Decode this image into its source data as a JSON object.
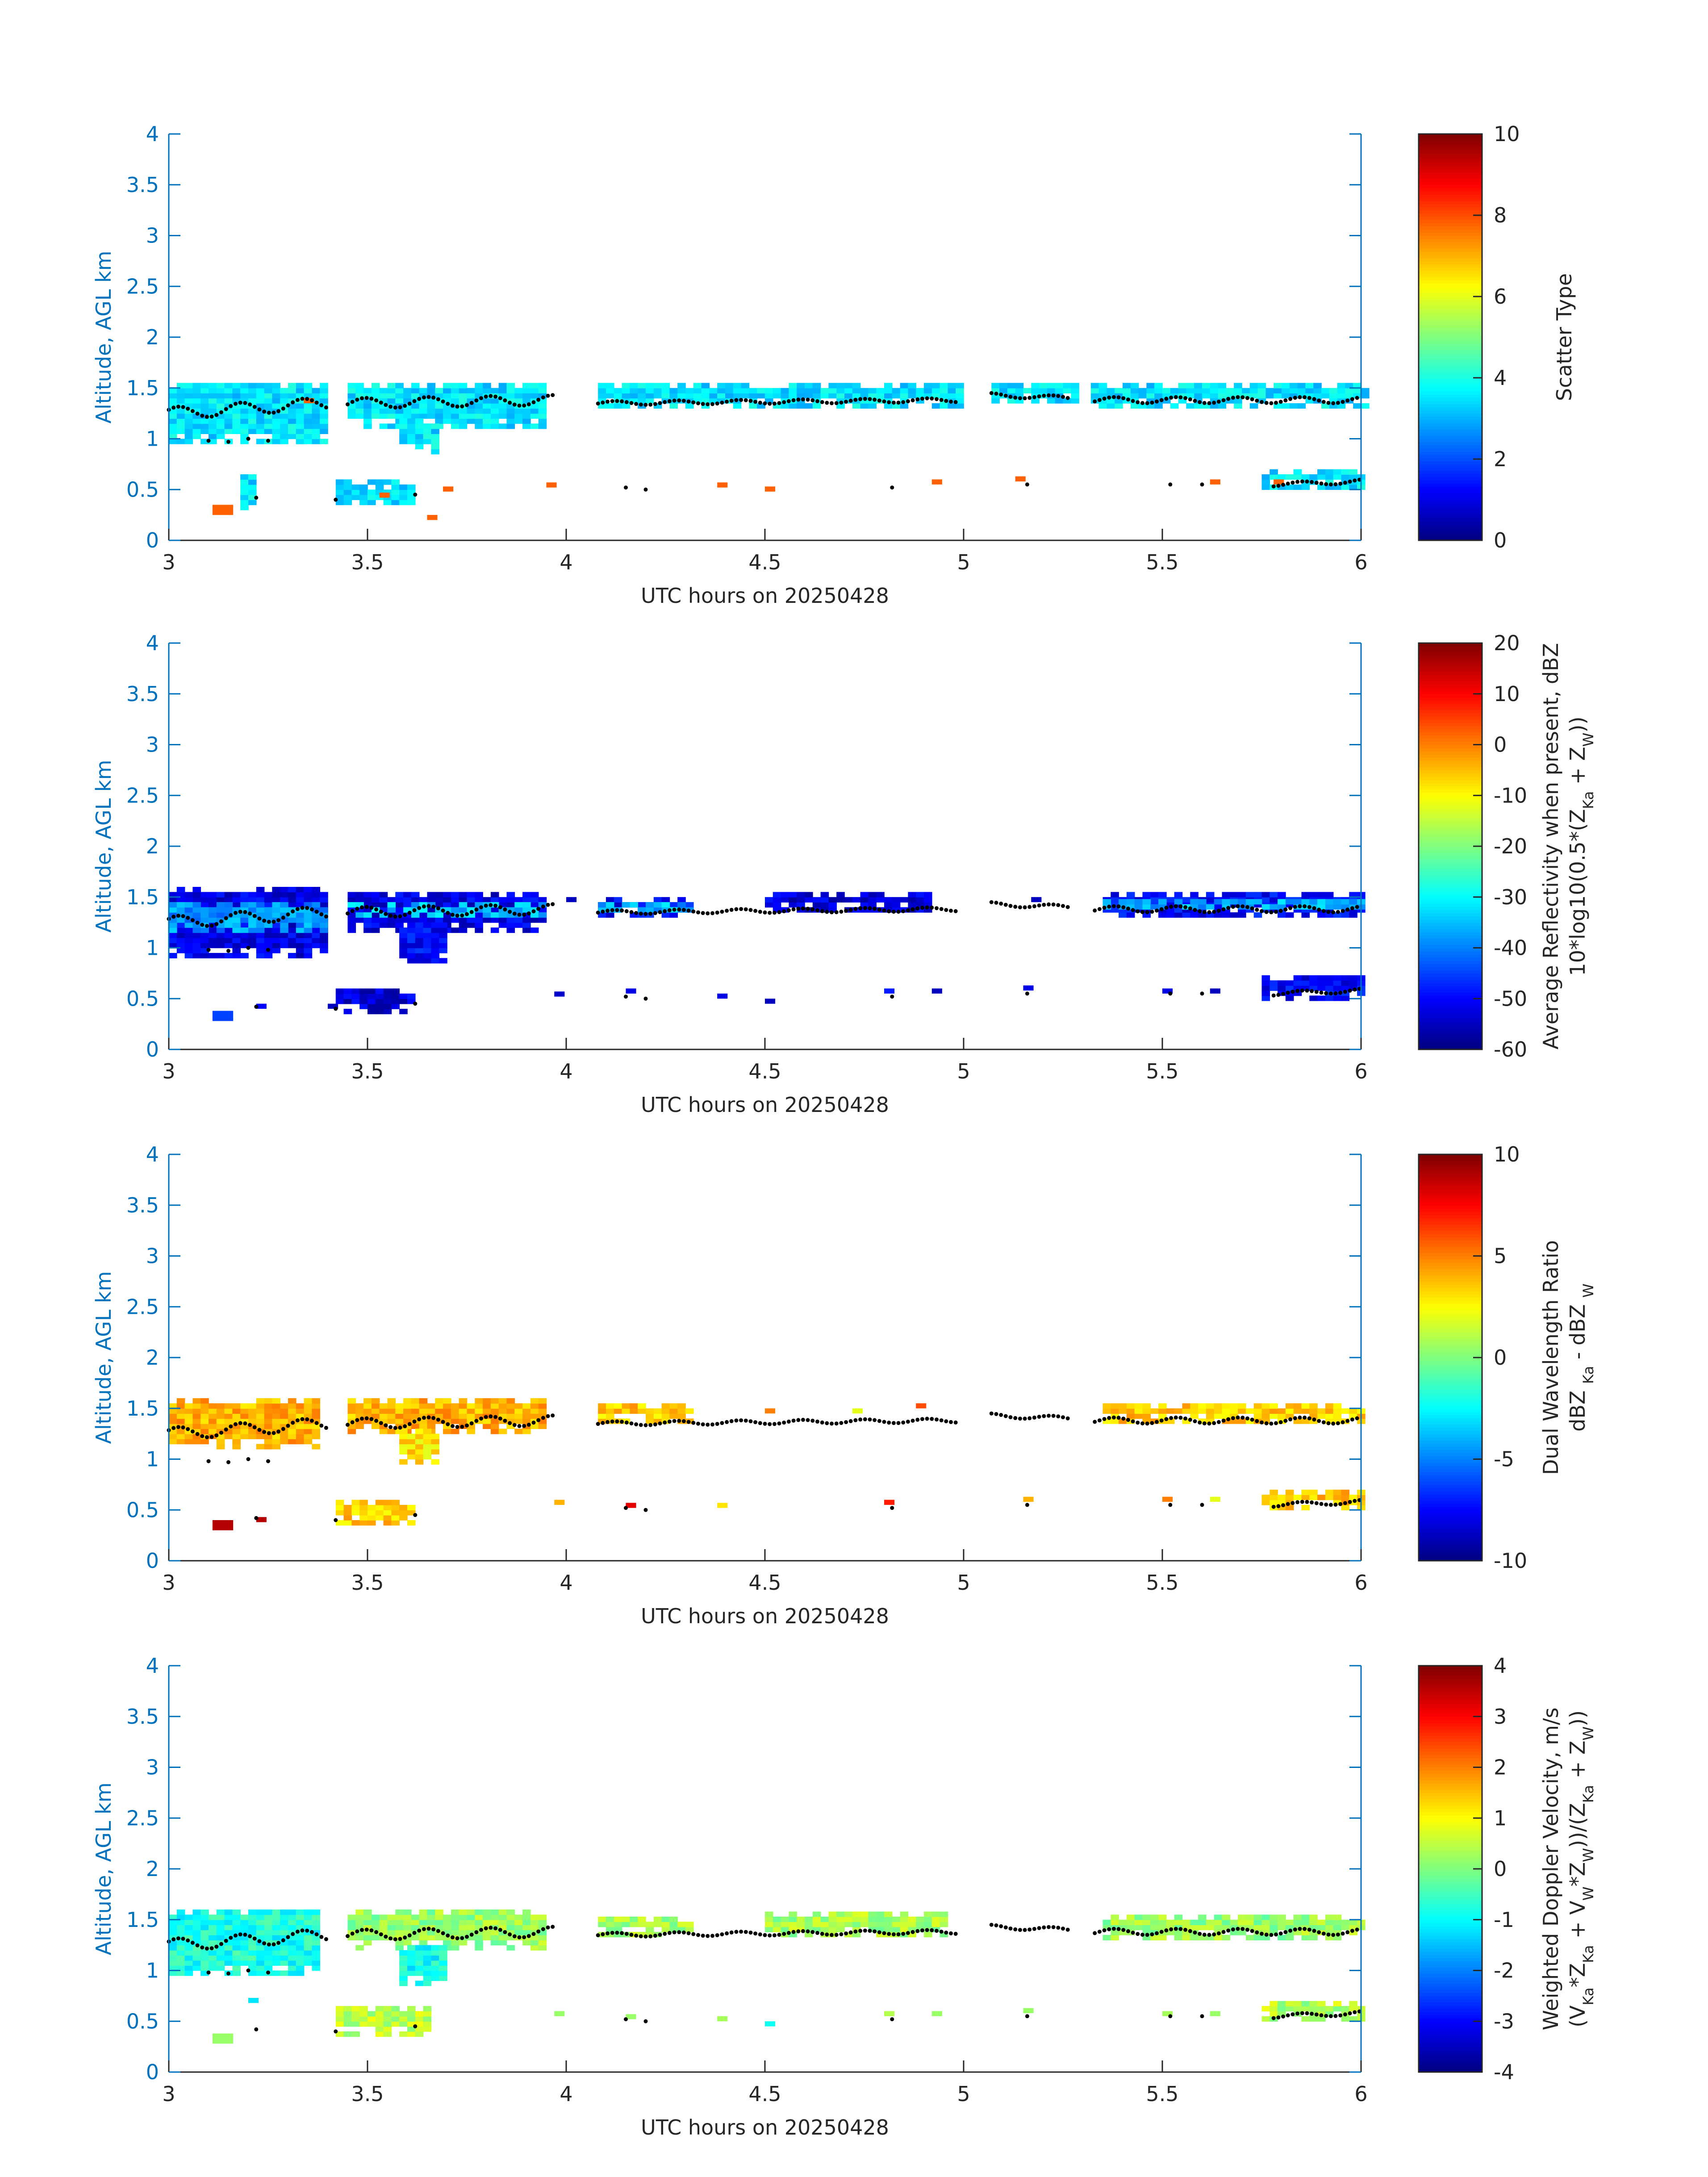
{
  "chart_data": [
    {
      "type": "heatmap",
      "xlabel": "UTC hours on 20250428",
      "ylabel": "Altitude, AGL km",
      "xlim": [
        3,
        6
      ],
      "ylim": [
        0,
        4
      ],
      "xticks": [
        "3",
        "3.5",
        "4",
        "4.5",
        "5",
        "5.5",
        "6"
      ],
      "yticks": [
        "0",
        "0.5",
        "1",
        "1.5",
        "2",
        "2.5",
        "3",
        "3.5",
        "4"
      ],
      "colorbar": {
        "label_lines": [
          "Scatter Type"
        ],
        "clim": [
          0,
          10
        ],
        "ticks": [
          "0",
          "2",
          "4",
          "6",
          "8",
          "10"
        ],
        "colormap": "jet"
      },
      "layers": [
        {
          "xr": [
            3.0,
            3.4
          ],
          "yr": [
            0.95,
            1.55
          ],
          "value": 3.5
        },
        {
          "xr": [
            3.45,
            3.95
          ],
          "yr": [
            1.1,
            1.55
          ],
          "value": 3.5
        },
        {
          "xr": [
            3.58,
            3.68
          ],
          "yr": [
            0.85,
            1.2
          ],
          "value": 3.5
        },
        {
          "xr": [
            4.08,
            4.98
          ],
          "yr": [
            1.3,
            1.52
          ],
          "value": 3.5
        },
        {
          "xr": [
            5.07,
            5.27
          ],
          "yr": [
            1.35,
            1.55
          ],
          "value": 3.5
        },
        {
          "xr": [
            5.32,
            6.0
          ],
          "yr": [
            1.3,
            1.52
          ],
          "value": 3.5
        },
        {
          "xr": [
            5.75,
            6.0
          ],
          "yr": [
            0.5,
            0.7
          ],
          "value": 3.5
        },
        {
          "xr": [
            3.42,
            3.62
          ],
          "yr": [
            0.35,
            0.55
          ],
          "value": 3.5
        },
        {
          "xr": [
            3.18,
            3.22
          ],
          "yr": [
            0.3,
            0.65
          ],
          "value": 3.5
        }
      ],
      "patches": [
        {
          "x": 3.11,
          "y": 0.25,
          "value": 7.8,
          "size": 2
        },
        {
          "x": 3.34,
          "y": 1.35,
          "value": 7.8
        },
        {
          "x": 3.53,
          "y": 0.42,
          "value": 7.8
        },
        {
          "x": 3.69,
          "y": 0.48,
          "value": 7.8
        },
        {
          "x": 3.65,
          "y": 0.2,
          "value": 7.8
        },
        {
          "x": 3.95,
          "y": 0.52,
          "value": 7.8
        },
        {
          "x": 4.38,
          "y": 0.52,
          "value": 7.8
        },
        {
          "x": 4.5,
          "y": 0.48,
          "value": 7.8
        },
        {
          "x": 4.92,
          "y": 0.55,
          "value": 7.8
        },
        {
          "x": 5.13,
          "y": 0.58,
          "value": 7.8
        },
        {
          "x": 5.62,
          "y": 0.55,
          "value": 7.8
        },
        {
          "x": 5.78,
          "y": 0.55,
          "value": 7.8
        }
      ]
    },
    {
      "type": "heatmap",
      "xlabel": "UTC hours on 20250428",
      "ylabel": "Altitude, AGL km",
      "xlim": [
        3,
        6
      ],
      "ylim": [
        0,
        4
      ],
      "xticks": [
        "3",
        "3.5",
        "4",
        "4.5",
        "5",
        "5.5",
        "6"
      ],
      "yticks": [
        "0",
        "0.5",
        "1",
        "1.5",
        "2",
        "2.5",
        "3",
        "3.5",
        "4"
      ],
      "colorbar": {
        "label_lines": [
          "Average Reflectivity when present, dBZ",
          "10*log10(0.5*(Z<sub>Ka</sub> + Z<sub>W</sub>))"
        ],
        "clim": [
          -60,
          20
        ],
        "ticks": [
          "-60",
          "-50",
          "-40",
          "-30",
          "-20",
          "-10",
          "0",
          "10",
          "20"
        ],
        "colormap": "jet"
      },
      "layers": [
        {
          "xr": [
            3.0,
            3.4
          ],
          "yr": [
            0.9,
            1.6
          ],
          "value": -52
        },
        {
          "xr": [
            3.0,
            3.4
          ],
          "yr": [
            1.15,
            1.45
          ],
          "value": -38
        },
        {
          "xr": [
            3.45,
            3.95
          ],
          "yr": [
            1.15,
            1.55
          ],
          "value": -52
        },
        {
          "xr": [
            3.45,
            3.95
          ],
          "yr": [
            1.3,
            1.45
          ],
          "value": -35
        },
        {
          "xr": [
            3.58,
            3.7
          ],
          "yr": [
            0.85,
            1.25
          ],
          "value": -50
        },
        {
          "xr": [
            4.08,
            4.3
          ],
          "yr": [
            1.3,
            1.5
          ],
          "value": -50
        },
        {
          "xr": [
            4.08,
            4.3
          ],
          "yr": [
            1.35,
            1.45
          ],
          "value": -36
        },
        {
          "xr": [
            4.5,
            4.9
          ],
          "yr": [
            1.35,
            1.55
          ],
          "value": -53
        },
        {
          "xr": [
            5.35,
            6.0
          ],
          "yr": [
            1.3,
            1.55
          ],
          "value": -50
        },
        {
          "xr": [
            5.35,
            6.0
          ],
          "yr": [
            1.38,
            1.48
          ],
          "value": -36
        },
        {
          "xr": [
            5.75,
            6.0
          ],
          "yr": [
            0.48,
            0.7
          ],
          "value": -50
        },
        {
          "xr": [
            3.42,
            3.62
          ],
          "yr": [
            0.35,
            0.6
          ],
          "value": -53
        }
      ],
      "patches": [
        {
          "x": 3.11,
          "y": 0.28,
          "value": -45,
          "size": 2
        },
        {
          "x": 3.22,
          "y": 0.4,
          "value": -50
        },
        {
          "x": 3.4,
          "y": 0.4,
          "value": -55
        },
        {
          "x": 3.97,
          "y": 0.52,
          "value": -54
        },
        {
          "x": 4.15,
          "y": 0.55,
          "value": -52
        },
        {
          "x": 4.38,
          "y": 0.5,
          "value": -52
        },
        {
          "x": 4.5,
          "y": 0.45,
          "value": -55
        },
        {
          "x": 4.8,
          "y": 0.55,
          "value": -48
        },
        {
          "x": 4.92,
          "y": 0.55,
          "value": -55
        },
        {
          "x": 5.15,
          "y": 0.58,
          "value": -52
        },
        {
          "x": 5.5,
          "y": 0.55,
          "value": -52
        },
        {
          "x": 5.62,
          "y": 0.55,
          "value": -55
        },
        {
          "x": 5.17,
          "y": 1.45,
          "value": -55
        },
        {
          "x": 4.0,
          "y": 1.45,
          "value": -55
        }
      ]
    },
    {
      "type": "heatmap",
      "xlabel": "UTC hours on 20250428",
      "ylabel": "Altitude, AGL km",
      "xlim": [
        3,
        6
      ],
      "ylim": [
        0,
        4
      ],
      "xticks": [
        "3",
        "3.5",
        "4",
        "4.5",
        "5",
        "5.5",
        "6"
      ],
      "yticks": [
        "0",
        "0.5",
        "1",
        "1.5",
        "2",
        "2.5",
        "3",
        "3.5",
        "4"
      ],
      "colorbar": {
        "label_lines": [
          "Dual Wavelength Ratio",
          "dBZ <sub>Ka</sub> - dBZ <sub>W</sub>"
        ],
        "clim": [
          -10,
          10
        ],
        "ticks": [
          "-10",
          "-5",
          "0",
          "5",
          "10"
        ],
        "colormap": "jet"
      },
      "layers": [
        {
          "xr": [
            3.0,
            3.38
          ],
          "yr": [
            1.1,
            1.58
          ],
          "value": 4
        },
        {
          "xr": [
            3.45,
            3.95
          ],
          "yr": [
            1.25,
            1.58
          ],
          "value": 4
        },
        {
          "xr": [
            3.58,
            3.68
          ],
          "yr": [
            0.95,
            1.3
          ],
          "value": 3
        },
        {
          "xr": [
            4.08,
            4.3
          ],
          "yr": [
            1.35,
            1.52
          ],
          "value": 3.5
        },
        {
          "xr": [
            5.35,
            6.0
          ],
          "yr": [
            1.35,
            1.55
          ],
          "value": 3.5
        },
        {
          "xr": [
            5.75,
            6.0
          ],
          "yr": [
            0.5,
            0.68
          ],
          "value": 3.5
        },
        {
          "xr": [
            3.42,
            3.62
          ],
          "yr": [
            0.35,
            0.6
          ],
          "value": 3.5
        }
      ],
      "patches": [
        {
          "x": 3.11,
          "y": 0.3,
          "value": 9,
          "size": 2
        },
        {
          "x": 3.22,
          "y": 0.38,
          "value": 9
        },
        {
          "x": 3.97,
          "y": 0.55,
          "value": 4
        },
        {
          "x": 4.15,
          "y": 0.52,
          "value": 8
        },
        {
          "x": 4.38,
          "y": 0.52,
          "value": 3
        },
        {
          "x": 4.8,
          "y": 0.55,
          "value": 7
        },
        {
          "x": 5.15,
          "y": 0.58,
          "value": 4
        },
        {
          "x": 5.5,
          "y": 0.58,
          "value": 5
        },
        {
          "x": 5.62,
          "y": 0.58,
          "value": 2
        },
        {
          "x": 4.5,
          "y": 1.45,
          "value": 5
        },
        {
          "x": 4.72,
          "y": 1.45,
          "value": 2
        },
        {
          "x": 4.88,
          "y": 1.5,
          "value": 6
        }
      ]
    },
    {
      "type": "heatmap",
      "xlabel": "UTC hours on 20250428",
      "ylabel": "Altitude, AGL km",
      "xlim": [
        3,
        6
      ],
      "ylim": [
        0,
        4
      ],
      "xticks": [
        "3",
        "3.5",
        "4",
        "4.5",
        "5",
        "5.5",
        "6"
      ],
      "yticks": [
        "0",
        "0.5",
        "1",
        "1.5",
        "2",
        "2.5",
        "3",
        "3.5",
        "4"
      ],
      "colorbar": {
        "label_lines": [
          "Weighted Doppler Velocity, m/s",
          "(V<sub>Ka</sub>*Z<sub>Ka</sub> + V<sub>W</sub>*Z<sub>W</sub>))/(Z<sub>Ka</sub> + Z<sub>W</sub>))"
        ],
        "clim": [
          -4,
          4
        ],
        "ticks": [
          "-4",
          "-3",
          "-2",
          "-1",
          "0",
          "1",
          "2",
          "3",
          "4"
        ],
        "colormap": "jet"
      },
      "layers": [
        {
          "xr": [
            3.0,
            3.38
          ],
          "yr": [
            0.95,
            1.6
          ],
          "value": -0.8
        },
        {
          "xr": [
            3.45,
            3.95
          ],
          "yr": [
            1.2,
            1.58
          ],
          "value": 0.2
        },
        {
          "xr": [
            3.58,
            3.7
          ],
          "yr": [
            0.85,
            1.25
          ],
          "value": -0.9
        },
        {
          "xr": [
            4.08,
            4.3
          ],
          "yr": [
            1.33,
            1.5
          ],
          "value": 0.3
        },
        {
          "xr": [
            4.5,
            4.95
          ],
          "yr": [
            1.33,
            1.55
          ],
          "value": 0.3
        },
        {
          "xr": [
            5.35,
            6.0
          ],
          "yr": [
            1.3,
            1.55
          ],
          "value": 0.2
        },
        {
          "xr": [
            5.75,
            6.0
          ],
          "yr": [
            0.5,
            0.7
          ],
          "value": 0.4
        },
        {
          "xr": [
            3.42,
            3.65
          ],
          "yr": [
            0.35,
            0.62
          ],
          "value": 0.5
        }
      ],
      "patches": [
        {
          "x": 3.11,
          "y": 0.28,
          "value": 0.2,
          "size": 2
        },
        {
          "x": 3.2,
          "y": 0.68,
          "value": -1.2
        },
        {
          "x": 3.97,
          "y": 0.55,
          "value": 0.2
        },
        {
          "x": 4.15,
          "y": 0.52,
          "value": 0.2
        },
        {
          "x": 4.38,
          "y": 0.5,
          "value": 0.3
        },
        {
          "x": 4.5,
          "y": 0.45,
          "value": -0.9
        },
        {
          "x": 4.8,
          "y": 0.55,
          "value": 0.4
        },
        {
          "x": 4.92,
          "y": 0.55,
          "value": 0.2
        },
        {
          "x": 5.15,
          "y": 0.58,
          "value": 0.2
        },
        {
          "x": 5.5,
          "y": 0.55,
          "value": 0.3
        },
        {
          "x": 5.62,
          "y": 0.55,
          "value": 0.2
        }
      ]
    }
  ],
  "cloud_base": {
    "segments": [
      {
        "x0": 3.0,
        "x1": 3.4,
        "y0": 1.25,
        "y1": 1.35,
        "amp": 0.06
      },
      {
        "x0": 3.45,
        "x1": 3.97,
        "y0": 1.35,
        "y1": 1.38,
        "amp": 0.05
      },
      {
        "x0": 4.08,
        "x1": 4.98,
        "y0": 1.35,
        "y1": 1.38,
        "amp": 0.02
      },
      {
        "x0": 5.07,
        "x1": 5.27,
        "y0": 1.43,
        "y1": 1.4,
        "amp": 0.02
      },
      {
        "x0": 5.33,
        "x1": 6.0,
        "y0": 1.38,
        "y1": 1.38,
        "amp": 0.03
      },
      {
        "x0": 5.78,
        "x1": 6.0,
        "y0": 0.55,
        "y1": 0.58,
        "amp": 0.02
      }
    ],
    "dots": [
      [
        3.1,
        0.98
      ],
      [
        3.15,
        0.97
      ],
      [
        3.2,
        1.0
      ],
      [
        3.25,
        0.98
      ],
      [
        3.22,
        0.42
      ],
      [
        3.42,
        0.4
      ],
      [
        3.62,
        0.45
      ],
      [
        4.15,
        0.52
      ],
      [
        4.2,
        0.5
      ],
      [
        4.82,
        0.52
      ],
      [
        5.16,
        0.55
      ],
      [
        5.52,
        0.55
      ],
      [
        5.6,
        0.55
      ]
    ]
  }
}
